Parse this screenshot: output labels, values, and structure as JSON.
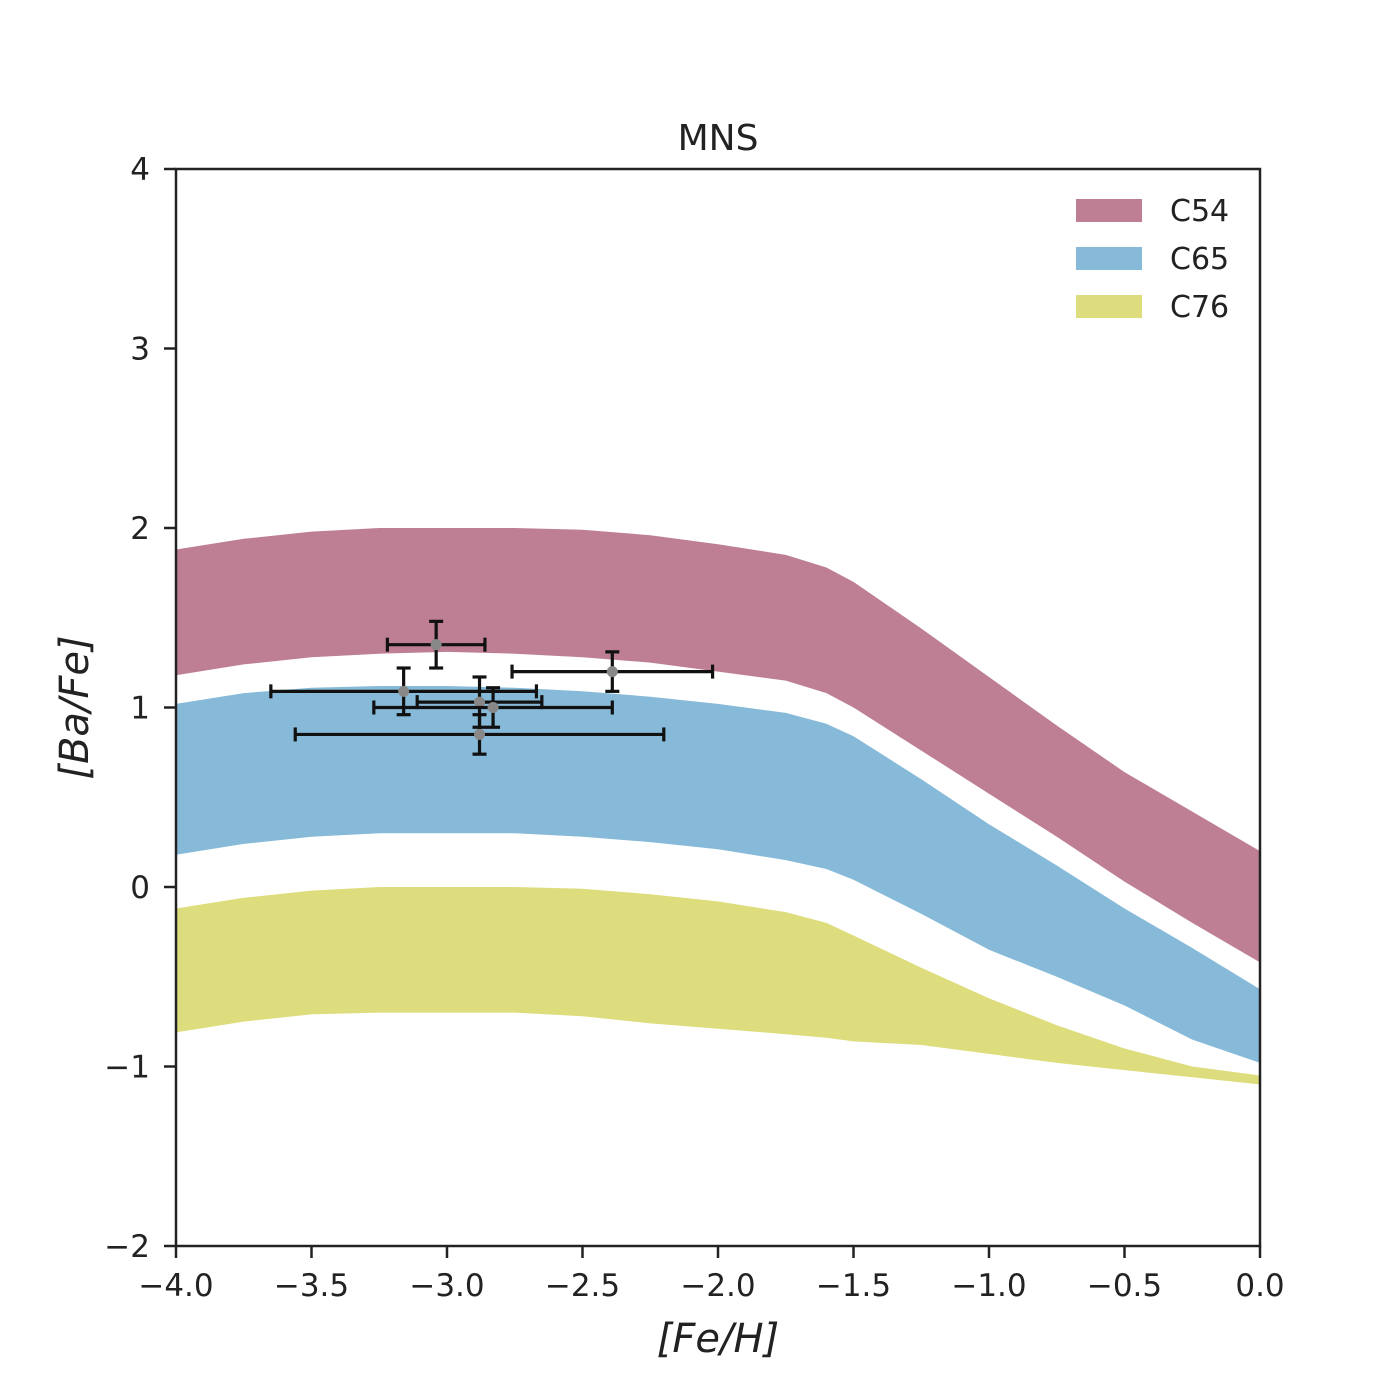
{
  "chart_data": {
    "type": "area",
    "title": "MNS",
    "xlabel": "[Fe/H]",
    "ylabel": "[Ba/Fe]",
    "xlim": [
      -4.0,
      0.0
    ],
    "ylim": [
      -2,
      4
    ],
    "xticks": [
      -4.0,
      -3.5,
      -3.0,
      -2.5,
      -2.0,
      -1.5,
      -1.0,
      -0.5,
      0.0
    ],
    "xtick_labels": [
      "−4.0",
      "−3.5",
      "−3.0",
      "−2.5",
      "−2.0",
      "−1.5",
      "−1.0",
      "−0.5",
      "0.0"
    ],
    "yticks": [
      -2,
      -1,
      0,
      1,
      2,
      3,
      4
    ],
    "ytick_labels": [
      "−2",
      "−1",
      "0",
      "1",
      "2",
      "3",
      "4"
    ],
    "legend_position": "top-right",
    "bands": [
      {
        "name": "C54",
        "color": "#be7f95",
        "x": [
          -4.0,
          -3.75,
          -3.5,
          -3.25,
          -3.0,
          -2.75,
          -2.5,
          -2.25,
          -2.0,
          -1.75,
          -1.6,
          -1.5,
          -1.25,
          -1.0,
          -0.75,
          -0.5,
          -0.25,
          0.0
        ],
        "upper": [
          1.88,
          1.94,
          1.98,
          2.0,
          2.0,
          2.0,
          1.99,
          1.96,
          1.91,
          1.85,
          1.78,
          1.7,
          1.44,
          1.17,
          0.9,
          0.64,
          0.42,
          0.2
        ],
        "lower": [
          1.18,
          1.24,
          1.28,
          1.3,
          1.31,
          1.3,
          1.28,
          1.25,
          1.2,
          1.15,
          1.08,
          1.0,
          0.76,
          0.52,
          0.28,
          0.03,
          -0.2,
          -0.42
        ]
      },
      {
        "name": "C65",
        "color": "#86bad8",
        "x": [
          -4.0,
          -3.75,
          -3.5,
          -3.25,
          -3.0,
          -2.75,
          -2.5,
          -2.25,
          -2.0,
          -1.75,
          -1.6,
          -1.5,
          -1.25,
          -1.0,
          -0.75,
          -0.5,
          -0.25,
          0.0
        ],
        "upper": [
          1.02,
          1.08,
          1.11,
          1.12,
          1.12,
          1.11,
          1.09,
          1.06,
          1.02,
          0.97,
          0.91,
          0.84,
          0.6,
          0.35,
          0.12,
          -0.12,
          -0.34,
          -0.57
        ],
        "lower": [
          0.18,
          0.24,
          0.28,
          0.3,
          0.3,
          0.3,
          0.28,
          0.25,
          0.21,
          0.15,
          0.1,
          0.04,
          -0.15,
          -0.35,
          -0.5,
          -0.66,
          -0.85,
          -0.98
        ]
      },
      {
        "name": "C76",
        "color": "#dedd7d",
        "x": [
          -4.0,
          -3.75,
          -3.5,
          -3.25,
          -3.0,
          -2.75,
          -2.5,
          -2.25,
          -2.0,
          -1.75,
          -1.6,
          -1.5,
          -1.25,
          -1.0,
          -0.75,
          -0.5,
          -0.25,
          0.0
        ],
        "upper": [
          -0.12,
          -0.06,
          -0.02,
          0.0,
          0.0,
          0.0,
          -0.01,
          -0.04,
          -0.08,
          -0.14,
          -0.2,
          -0.27,
          -0.45,
          -0.62,
          -0.77,
          -0.9,
          -1.0,
          -1.05
        ],
        "lower": [
          -0.81,
          -0.75,
          -0.71,
          -0.7,
          -0.7,
          -0.7,
          -0.72,
          -0.76,
          -0.79,
          -0.82,
          -0.84,
          -0.86,
          -0.88,
          -0.93,
          -0.98,
          -1.02,
          -1.06,
          -1.1
        ]
      }
    ],
    "points": [
      {
        "x": -3.04,
        "y": 1.35,
        "xerr": 0.18,
        "yerr": 0.13
      },
      {
        "x": -2.39,
        "y": 1.2,
        "xerr": 0.37,
        "yerr": 0.11
      },
      {
        "x": -3.16,
        "y": 1.09,
        "xerr": 0.49,
        "yerr": 0.13
      },
      {
        "x": -2.88,
        "y": 1.03,
        "xerr": 0.23,
        "yerr": 0.14
      },
      {
        "x": -2.83,
        "y": 1.0,
        "xerr": 0.44,
        "yerr": 0.11
      },
      {
        "x": -2.88,
        "y": 0.85,
        "xerr": 0.68,
        "yerr": 0.11
      }
    ]
  }
}
